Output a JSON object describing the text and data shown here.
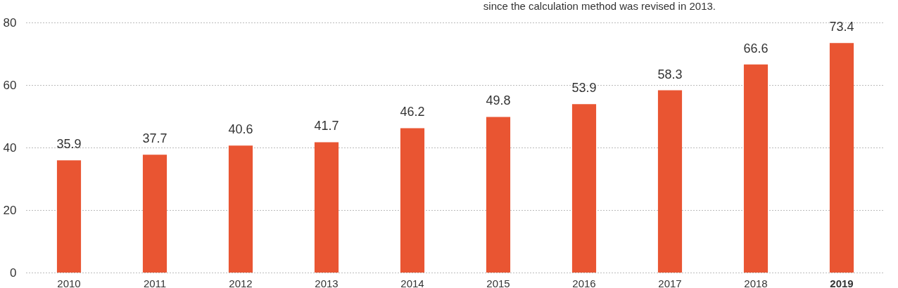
{
  "chart_data": {
    "type": "bar",
    "annotations": [
      "since the calculation method was revised in 2013."
    ],
    "categories": [
      "2010",
      "2011",
      "2012",
      "2013",
      "2014",
      "2015",
      "2016",
      "2017",
      "2018",
      "2019"
    ],
    "values": [
      35.9,
      37.7,
      40.6,
      41.7,
      46.2,
      49.8,
      53.9,
      58.3,
      66.6,
      73.4
    ],
    "color": "#e95532",
    "ylim": [
      0,
      80
    ],
    "yticks": [
      0,
      20,
      40,
      60,
      80
    ],
    "grid": "y",
    "data_labels": true
  }
}
